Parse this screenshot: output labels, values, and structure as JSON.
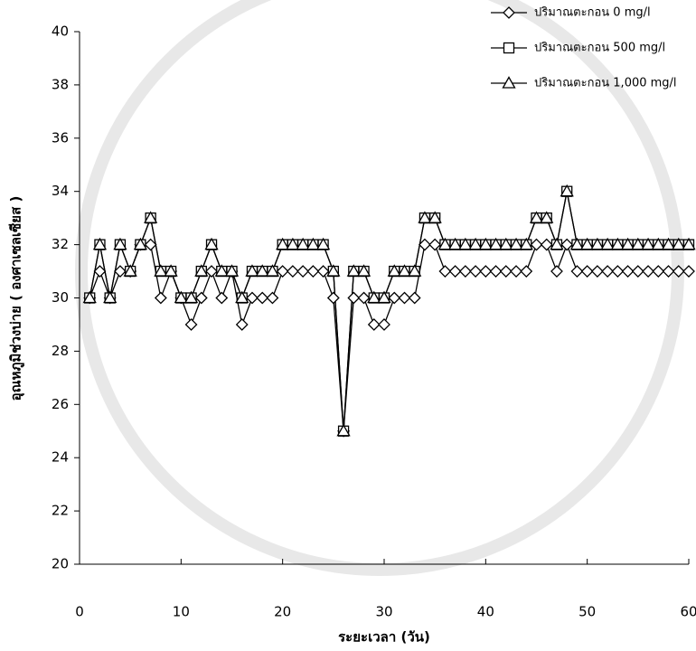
{
  "chart_data": {
    "type": "line",
    "xlabel": "ระยะเวลา (วัน)",
    "ylabel": "อุณหภูมิช่วงบ่าย ( องศาเซลเซียส )",
    "x": [
      1,
      2,
      3,
      4,
      5,
      6,
      7,
      8,
      9,
      10,
      11,
      12,
      13,
      14,
      15,
      16,
      17,
      18,
      19,
      20,
      21,
      22,
      23,
      24,
      25,
      26,
      27,
      28,
      29,
      30,
      31,
      32,
      33,
      34,
      35,
      36,
      37,
      38,
      39,
      40,
      41,
      42,
      43,
      44,
      45,
      46,
      47,
      48,
      49,
      50,
      51,
      52,
      53,
      54,
      55,
      56,
      57,
      58,
      59,
      60
    ],
    "series": [
      {
        "name": "ปริมาณตะกอน 0 mg/l",
        "color": "#000000",
        "marker": "diamond",
        "values": [
          30,
          31,
          30,
          31,
          31,
          32,
          32,
          30,
          31,
          30,
          29,
          30,
          31,
          30,
          31,
          29,
          30,
          30,
          30,
          31,
          31,
          31,
          31,
          31,
          30,
          25,
          30,
          30,
          29,
          29,
          30,
          30,
          30,
          32,
          32,
          31,
          31,
          31,
          31,
          31,
          31,
          31,
          31,
          31,
          32,
          32,
          31,
          32,
          31,
          31,
          31,
          31,
          31,
          31,
          31,
          31,
          31,
          31,
          31,
          31
        ]
      },
      {
        "name": "ปริมาณตะกอน 500 mg/l",
        "color": "#000000",
        "marker": "square",
        "values": [
          30,
          32,
          30,
          32,
          31,
          32,
          33,
          31,
          31,
          30,
          30,
          31,
          32,
          31,
          31,
          30,
          31,
          31,
          31,
          32,
          32,
          32,
          32,
          32,
          31,
          25,
          31,
          31,
          30,
          30,
          31,
          31,
          31,
          33,
          33,
          32,
          32,
          32,
          32,
          32,
          32,
          32,
          32,
          32,
          33,
          33,
          32,
          34,
          32,
          32,
          32,
          32,
          32,
          32,
          32,
          32,
          32,
          32,
          32,
          32
        ]
      },
      {
        "name": "ปริมาณตะกอน 1,000 mg/l",
        "color": "#000000",
        "marker": "triangle",
        "values": [
          30,
          32,
          30,
          32,
          31,
          32,
          33,
          31,
          31,
          30,
          30,
          31,
          32,
          31,
          31,
          30,
          31,
          31,
          31,
          32,
          32,
          32,
          32,
          32,
          31,
          25,
          31,
          31,
          30,
          30,
          31,
          31,
          31,
          33,
          33,
          32,
          32,
          32,
          32,
          32,
          32,
          32,
          32,
          32,
          33,
          33,
          32,
          34,
          32,
          32,
          32,
          32,
          32,
          32,
          32,
          32,
          32,
          32,
          32,
          32
        ]
      }
    ],
    "xlim": [
      0,
      60
    ],
    "xticks": [
      0,
      10,
      20,
      30,
      40,
      50,
      60
    ],
    "ylim": [
      20,
      40
    ],
    "yticks": [
      20,
      22,
      24,
      26,
      28,
      30,
      32,
      34,
      36,
      38,
      40
    ],
    "legend": "upper right",
    "grid": false
  }
}
